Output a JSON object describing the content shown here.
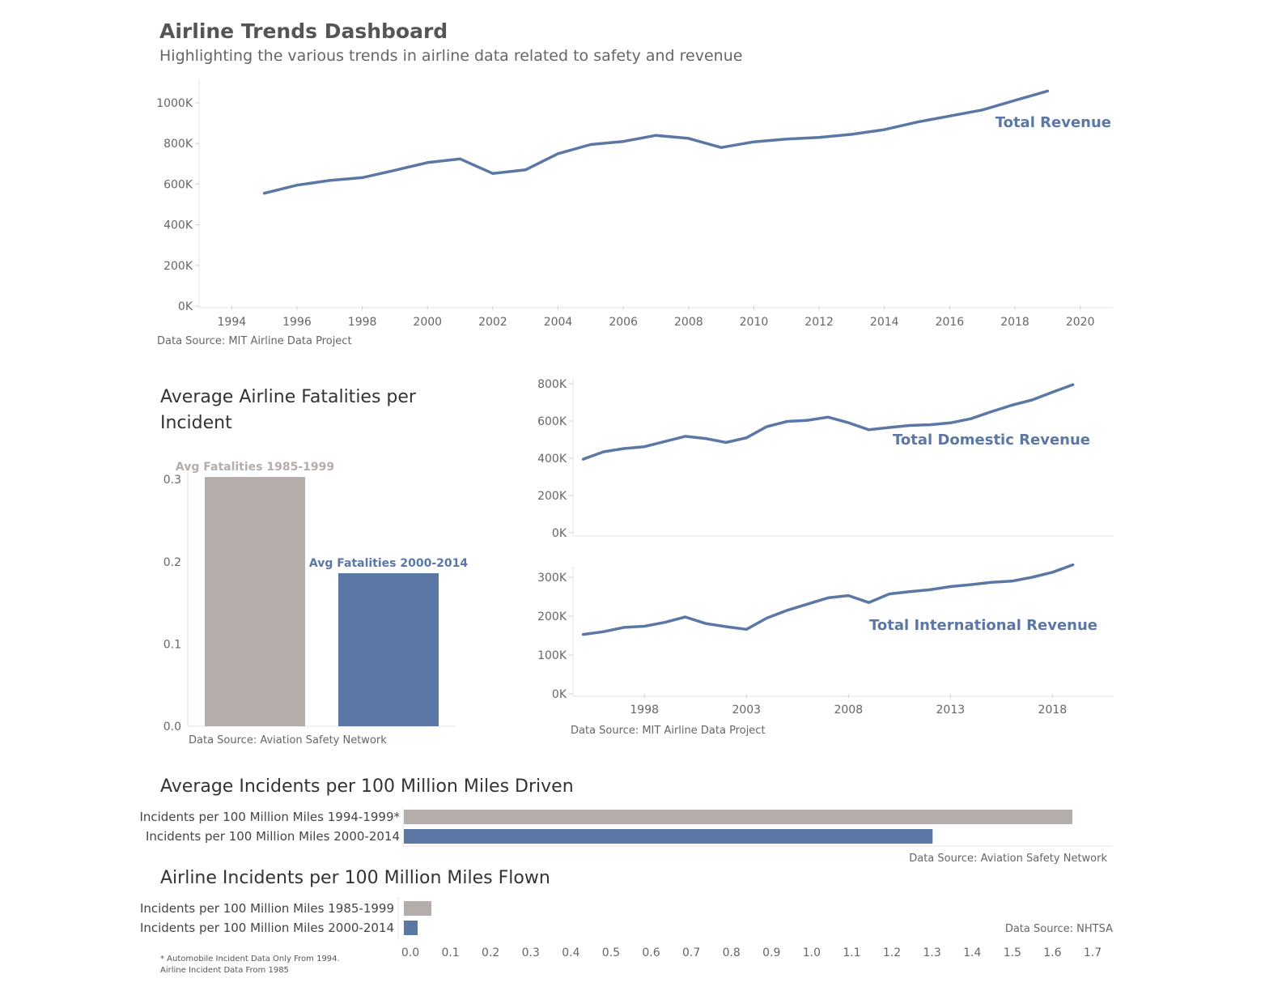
{
  "dashboard": {
    "title": "Airline Trends Dashboard",
    "subtitle": "Highlighting the various trends in airline data related to safety and revenue",
    "footnote_line1": "* Automobile Incident Data Only From 1994.",
    "footnote_line2": "Airline Incident Data From 1985"
  },
  "colors": {
    "gray": "#b5ada9",
    "blue": "#5b77a5",
    "text": "#555555"
  },
  "chart_data": [
    {
      "id": "total_revenue",
      "type": "line",
      "title": "",
      "series_label": "Total Revenue",
      "source": "Data Source: MIT Airline Data Project",
      "xlim": [
        1993,
        2021
      ],
      "ylim": [
        0,
        1000000
      ],
      "x_ticks": [
        1994,
        1996,
        1998,
        2000,
        2002,
        2004,
        2006,
        2008,
        2010,
        2012,
        2014,
        2016,
        2018,
        2020
      ],
      "y_ticks": [
        0,
        200000,
        400000,
        600000,
        800000,
        1000000
      ],
      "y_tick_labels": [
        "0K",
        "200K",
        "400K",
        "600K",
        "800K",
        "1000K"
      ],
      "x": [
        1995,
        1996,
        1997,
        1998,
        1999,
        2000,
        2001,
        2002,
        2003,
        2004,
        2005,
        2006,
        2007,
        2008,
        2009,
        2010,
        2011,
        2012,
        2013,
        2014,
        2015,
        2016,
        2017,
        2018,
        2019
      ],
      "y": [
        555000,
        595000,
        618000,
        632000,
        668000,
        706000,
        724000,
        652000,
        670000,
        750000,
        795000,
        810000,
        840000,
        825000,
        780000,
        808000,
        822000,
        830000,
        845000,
        868000,
        905000,
        935000,
        965000,
        1012000,
        1058000
      ]
    },
    {
      "id": "domestic_revenue",
      "type": "line",
      "title": "",
      "series_label": "Total Domestic Revenue",
      "source": "",
      "xlim": [
        1994.5,
        2021
      ],
      "ylim": [
        0,
        800000
      ],
      "x_ticks": [
        1998,
        2003,
        2008,
        2013,
        2018
      ],
      "y_ticks": [
        0,
        200000,
        400000,
        600000,
        800000
      ],
      "y_tick_labels": [
        "0K",
        "200K",
        "400K",
        "600K",
        "800K"
      ],
      "x": [
        1995,
        1996,
        1997,
        1998,
        1999,
        2000,
        2001,
        2002,
        2003,
        2004,
        2005,
        2006,
        2007,
        2008,
        2009,
        2010,
        2011,
        2012,
        2013,
        2014,
        2015,
        2016,
        2017,
        2018,
        2019
      ],
      "y": [
        395000,
        435000,
        452000,
        462000,
        490000,
        518000,
        506000,
        485000,
        510000,
        570000,
        598000,
        604000,
        621000,
        591000,
        553000,
        565000,
        576000,
        580000,
        590000,
        612000,
        650000,
        685000,
        713000,
        755000,
        795000
      ]
    },
    {
      "id": "international_revenue",
      "type": "line",
      "title": "",
      "series_label": "Total International Revenue",
      "source": "Data Source: MIT Airline Data Project",
      "xlim": [
        1994.5,
        2021
      ],
      "ylim": [
        0,
        300000
      ],
      "x_ticks": [
        1998,
        2003,
        2008,
        2013,
        2018
      ],
      "y_ticks": [
        0,
        100000,
        200000,
        300000
      ],
      "y_tick_labels": [
        "0K",
        "100K",
        "200K",
        "300K"
      ],
      "x": [
        1995,
        1996,
        1997,
        1998,
        1999,
        2000,
        2001,
        2002,
        2003,
        2004,
        2005,
        2006,
        2007,
        2008,
        2009,
        2010,
        2011,
        2012,
        2013,
        2014,
        2015,
        2016,
        2017,
        2018,
        2019
      ],
      "y": [
        153000,
        160000,
        171000,
        174000,
        184000,
        198000,
        181000,
        173000,
        166000,
        195000,
        215000,
        231000,
        247000,
        253000,
        235000,
        257000,
        263000,
        268000,
        276000,
        281000,
        287000,
        290000,
        300000,
        313000,
        332000
      ]
    },
    {
      "id": "fatalities",
      "type": "bar",
      "title": "Average Airline Fatalities per Incident",
      "categories": [
        "Avg Fatalities 1985-1999",
        "Avg Fatalities 2000-2014"
      ],
      "values": [
        0.303,
        0.186
      ],
      "bar_colors": [
        "#b5ada9",
        "#5b77a5"
      ],
      "ylim": [
        0,
        0.31
      ],
      "y_ticks": [
        0.0,
        0.1,
        0.2,
        0.3
      ],
      "y_tick_labels": [
        "0.0",
        "0.1",
        "0.2",
        "0.3"
      ],
      "source": "Data Source: Aviation Safety Network"
    },
    {
      "id": "incidents_driven",
      "type": "bar",
      "orientation": "horizontal",
      "title": "Average Incidents per 100 Million Miles Driven",
      "categories": [
        "Incidents per 100 Million Miles 1994-1999*",
        "Incidents per 100 Million Miles 2000-2014"
      ],
      "values": [
        1.65,
        1.305
      ],
      "bar_colors": [
        "#b5ada9",
        "#5b77a5"
      ],
      "source": "Data Source: Aviation Safety Network"
    },
    {
      "id": "incidents_flown",
      "type": "bar",
      "orientation": "horizontal",
      "title": "Airline Incidents per 100 Million Miles Flown",
      "categories": [
        "Incidents per 100 Million Miles 1985-1999",
        "Incidents per 100 Million Miles 2000-2014"
      ],
      "values": [
        0.068,
        0.034
      ],
      "bar_colors": [
        "#b5ada9",
        "#5b77a5"
      ],
      "source": "Data Source: NHTSA",
      "xlim": [
        -0.016,
        1.7
      ],
      "x_ticks": [
        0.0,
        0.1,
        0.2,
        0.3,
        0.4,
        0.5,
        0.6,
        0.7,
        0.8,
        0.9,
        1.0,
        1.1,
        1.2,
        1.3,
        1.4,
        1.5,
        1.6,
        1.7
      ],
      "x_tick_labels": [
        "0.0",
        "0.1",
        "0.2",
        "0.3",
        "0.4",
        "0.5",
        "0.6",
        "0.7",
        "0.8",
        "0.9",
        "1.0",
        "1.1",
        "1.2",
        "1.3",
        "1.4",
        "1.5",
        "1.6",
        "1.7"
      ]
    }
  ]
}
